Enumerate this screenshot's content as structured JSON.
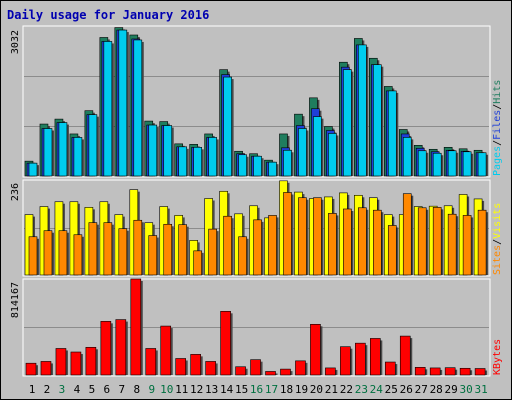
{
  "title": "Daily usage for January 2016",
  "panel_top": {
    "max_label": "3032",
    "legend": [
      "Pages",
      "Files",
      "Hits"
    ]
  },
  "panel_mid": {
    "max_label": "236",
    "legend": [
      "Sites",
      "Visits"
    ]
  },
  "panel_bot": {
    "max_label": "814167",
    "legend": [
      "KBytes"
    ]
  },
  "colors": {
    "background": "#c0c0c0",
    "title": "#0000b0",
    "hits": "#1f7d5e",
    "files": "#1f3fd8",
    "pages": "#00ccee",
    "visits": "#ffff00",
    "sites": "#ff8800",
    "kbytes": "#ff0000",
    "weekday_label": "#000000",
    "weekend_label": "#007040"
  },
  "chart_data": [
    {
      "type": "bar",
      "title": "Daily usage for January 2016",
      "categories": [
        "1",
        "2",
        "3",
        "4",
        "5",
        "6",
        "7",
        "8",
        "9",
        "10",
        "11",
        "12",
        "13",
        "14",
        "15",
        "16",
        "17",
        "18",
        "19",
        "20",
        "21",
        "22",
        "23",
        "24",
        "25",
        "26",
        "27",
        "28",
        "29",
        "30",
        "31"
      ],
      "weekend_days": [
        "3",
        "9",
        "10",
        "16",
        "17",
        "23",
        "24",
        "30",
        "31"
      ],
      "ylim": [
        0,
        3032
      ],
      "series": [
        {
          "name": "Hits",
          "values": [
            300,
            1050,
            1150,
            850,
            1320,
            2800,
            3000,
            2850,
            1110,
            1100,
            650,
            640,
            850,
            2150,
            500,
            450,
            320,
            850,
            1250,
            1580,
            1000,
            2300,
            2780,
            2380,
            1810,
            940,
            620,
            540,
            580,
            550,
            520
          ]
        },
        {
          "name": "Files",
          "values": [
            260,
            960,
            1080,
            780,
            1240,
            2720,
            2950,
            2770,
            1030,
            1020,
            590,
            580,
            780,
            2050,
            450,
            400,
            280,
            570,
            1020,
            1360,
            920,
            2200,
            2650,
            2250,
            1720,
            850,
            560,
            490,
            520,
            500,
            470
          ]
        },
        {
          "name": "Pages",
          "values": [
            260,
            960,
            1080,
            780,
            1240,
            2720,
            2950,
            2750,
            1030,
            1020,
            590,
            580,
            780,
            2000,
            430,
            400,
            280,
            520,
            960,
            1200,
            860,
            2150,
            2650,
            2250,
            1720,
            780,
            510,
            460,
            510,
            490,
            470
          ]
        }
      ]
    },
    {
      "type": "bar",
      "categories": [
        "1",
        "2",
        "3",
        "4",
        "5",
        "6",
        "7",
        "8",
        "9",
        "10",
        "11",
        "12",
        "13",
        "14",
        "15",
        "16",
        "17",
        "18",
        "19",
        "20",
        "21",
        "22",
        "23",
        "24",
        "25",
        "26",
        "27",
        "28",
        "29",
        "30",
        "31"
      ],
      "ylim": [
        0,
        236
      ],
      "series": [
        {
          "name": "Visits",
          "values": [
            150,
            170,
            182,
            182,
            168,
            182,
            150,
            212,
            130,
            170,
            148,
            86,
            190,
            208,
            152,
            172,
            142,
            234,
            206,
            190,
            194,
            204,
            198,
            192,
            150,
            150,
            170,
            171,
            172,
            200,
            189
          ]
        },
        {
          "name": "Sites",
          "values": [
            95,
            110,
            110,
            100,
            130,
            130,
            115,
            136,
            98,
            126,
            125,
            60,
            114,
            146,
            95,
            137,
            148,
            205,
            192,
            192,
            153,
            164,
            167,
            161,
            123,
            202,
            167,
            168,
            151,
            148,
            161
          ]
        }
      ]
    },
    {
      "type": "bar",
      "ylim": [
        0,
        814167
      ],
      "categories": [
        "1",
        "2",
        "3",
        "4",
        "5",
        "6",
        "7",
        "8",
        "9",
        "10",
        "11",
        "12",
        "13",
        "14",
        "15",
        "16",
        "17",
        "18",
        "19",
        "20",
        "21",
        "22",
        "23",
        "24",
        "25",
        "26",
        "27",
        "28",
        "29",
        "30",
        "31"
      ],
      "series": [
        {
          "name": "KBytes",
          "values": [
            100000,
            115000,
            225000,
            195000,
            235000,
            455000,
            470000,
            814167,
            225000,
            415000,
            140000,
            175000,
            115000,
            540000,
            70000,
            130000,
            30000,
            50000,
            120000,
            430000,
            60000,
            240000,
            270000,
            310000,
            110000,
            330000,
            65000,
            60000,
            62000,
            57000,
            55000
          ]
        }
      ]
    }
  ]
}
